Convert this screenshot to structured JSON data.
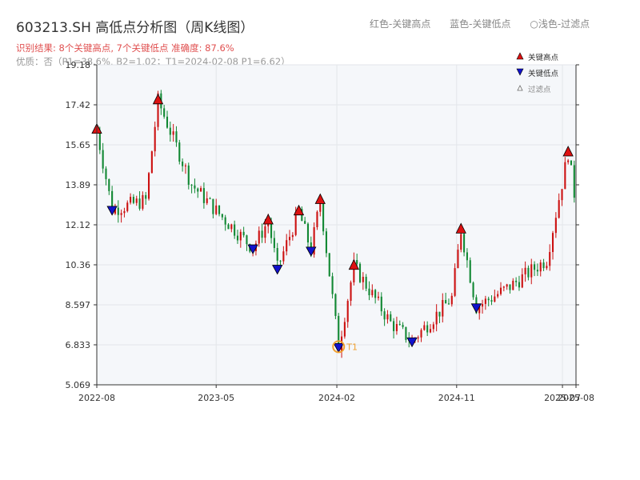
{
  "header": {
    "title": "603213.SH 高低点分析图（周K线图）",
    "subtitle": "识别结果: 8个关键高点, 7个关键低点  准确度: 87.6%",
    "note": "优质：否（P1=38.6%, B2=1.02；T1=2024-02-08 P1=6.62）",
    "legend_top": [
      "红色-关键高点",
      "蓝色-关键低点",
      "○浅色-过滤点"
    ]
  },
  "colors": {
    "up": "#cc1111",
    "down": "#118833",
    "high_marker": "#dd1111",
    "low_marker": "#1111cc",
    "t1_ring": "#f0a030",
    "plot_bg": "#f5f7fa",
    "grid": "#e3e6ea"
  },
  "chart_data": {
    "type": "candlestick",
    "title": "603213.SH 高低点分析图（周K线图）",
    "y_ticks": [
      "5.069",
      "6.833",
      "8.597",
      "10.36",
      "12.12",
      "13.89",
      "15.65",
      "17.42",
      "19.18"
    ],
    "ylim": [
      5.069,
      19.18
    ],
    "x_ticks": [
      {
        "label": "2022-08",
        "date": "2022-08-01"
      },
      {
        "label": "2023-05",
        "date": "2023-05-01"
      },
      {
        "label": "2024-02",
        "date": "2024-02-01"
      },
      {
        "label": "2024-11",
        "date": "2024-11-01"
      },
      {
        "label": "2025-07",
        "date": "2025-07-01"
      },
      {
        "label": "2025-08",
        "date": "2025-08-01"
      }
    ],
    "xlim": [
      "2022-08-01",
      "2025-08-01"
    ],
    "grid": true,
    "legend_placement": "top-right",
    "legend": [
      "关键高点",
      "关键低点",
      "过滤点"
    ],
    "anchors": [
      {
        "date": "2022-08-01",
        "price": 16.3
      },
      {
        "date": "2022-09-05",
        "price": 12.8
      },
      {
        "date": "2022-11-21",
        "price": 13.2
      },
      {
        "date": "2022-12-19",
        "price": 17.6
      },
      {
        "date": "2023-03-06",
        "price": 13.9
      },
      {
        "date": "2023-05-08",
        "price": 12.6
      },
      {
        "date": "2023-07-24",
        "price": 11.1
      },
      {
        "date": "2023-08-28",
        "price": 12.3
      },
      {
        "date": "2023-09-18",
        "price": 10.2
      },
      {
        "date": "2023-11-06",
        "price": 12.7
      },
      {
        "date": "2023-12-04",
        "price": 11.0
      },
      {
        "date": "2023-12-25",
        "price": 13.2
      },
      {
        "date": "2024-02-05",
        "price": 6.75
      },
      {
        "date": "2024-03-11",
        "price": 10.3
      },
      {
        "date": "2024-06-03",
        "price": 7.8
      },
      {
        "date": "2024-07-22",
        "price": 7.0
      },
      {
        "date": "2024-10-21",
        "price": 8.9
      },
      {
        "date": "2024-11-11",
        "price": 11.9
      },
      {
        "date": "2024-12-16",
        "price": 8.5
      },
      {
        "date": "2025-03-03",
        "price": 9.4
      },
      {
        "date": "2025-05-26",
        "price": 10.6
      },
      {
        "date": "2025-07-14",
        "price": 15.3
      },
      {
        "date": "2025-08-01",
        "price": 13.0
      }
    ],
    "key_highs": [
      {
        "date": "2022-08-01",
        "price": 16.3
      },
      {
        "date": "2022-12-19",
        "price": 17.6
      },
      {
        "date": "2023-08-28",
        "price": 12.3
      },
      {
        "date": "2023-11-06",
        "price": 12.7
      },
      {
        "date": "2023-12-25",
        "price": 13.2
      },
      {
        "date": "2024-03-11",
        "price": 10.3
      },
      {
        "date": "2024-11-11",
        "price": 11.9
      },
      {
        "date": "2025-07-14",
        "price": 15.3
      }
    ],
    "key_lows": [
      {
        "date": "2022-09-05",
        "price": 12.8
      },
      {
        "date": "2023-07-24",
        "price": 11.1
      },
      {
        "date": "2023-09-18",
        "price": 10.2
      },
      {
        "date": "2023-12-04",
        "price": 11.0
      },
      {
        "date": "2024-02-05",
        "price": 6.75
      },
      {
        "date": "2024-07-22",
        "price": 7.0
      },
      {
        "date": "2024-12-16",
        "price": 8.5
      }
    ],
    "t1": {
      "label": "T1",
      "date": "2024-02-05",
      "price": 6.75
    }
  }
}
